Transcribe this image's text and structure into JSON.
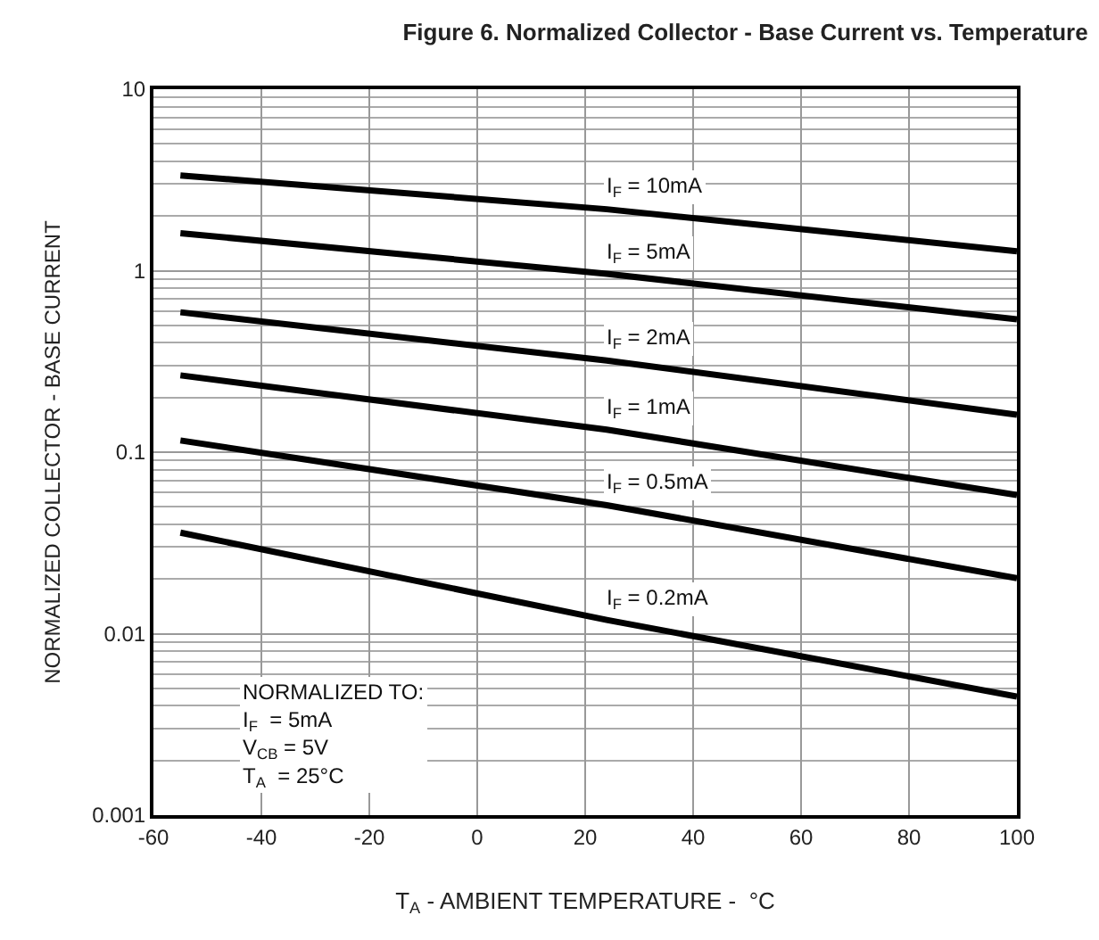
{
  "chart_data": {
    "type": "line",
    "title": "Figure 6. Normalized Collector - Base Current vs. Temperature",
    "xlabel": "T$_{A}$ - AMBIENT TEMPERATURE -  °C",
    "ylabel": "NORMALIZED COLLECTOR - BASE CURRENT",
    "x": [
      -55,
      24,
      100
    ],
    "series": [
      {
        "name": "I$_{F}$ = 10mA",
        "color": "#000000",
        "values": [
          3.35,
          2.18,
          1.28
        ]
      },
      {
        "name": "I$_{F}$ = 5mA",
        "color": "#000000",
        "values": [
          1.61,
          0.96,
          0.54
        ]
      },
      {
        "name": "I$_{F}$ = 2mA",
        "color": "#000000",
        "values": [
          0.59,
          0.32,
          0.161
        ]
      },
      {
        "name": "I$_{F}$ = 1mA",
        "color": "#000000",
        "values": [
          0.265,
          0.133,
          0.058
        ]
      },
      {
        "name": "I$_{F}$ = 0.5mA",
        "color": "#000000",
        "values": [
          0.116,
          0.051,
          0.0202
        ]
      },
      {
        "name": "I$_{F}$ = 0.2mA",
        "color": "#000000",
        "values": [
          0.036,
          0.0119,
          0.0045
        ]
      }
    ],
    "annotations": [
      "NORMALIZED TO:\nI$_{F}$  = 5mA\nV$_{CB}$ = 5V\nT$_{A}$  = 25°C"
    ],
    "xlim": [
      -60,
      100
    ],
    "xticks": [
      -60,
      -40,
      -20,
      0,
      20,
      40,
      60,
      80,
      100
    ],
    "ylim": [
      0.001,
      10
    ],
    "yticks": [
      0.001,
      0.01,
      0.1,
      1,
      10
    ],
    "log": "y",
    "grid": true,
    "legend": false,
    "marker": "none",
    "line_style": "solid"
  }
}
